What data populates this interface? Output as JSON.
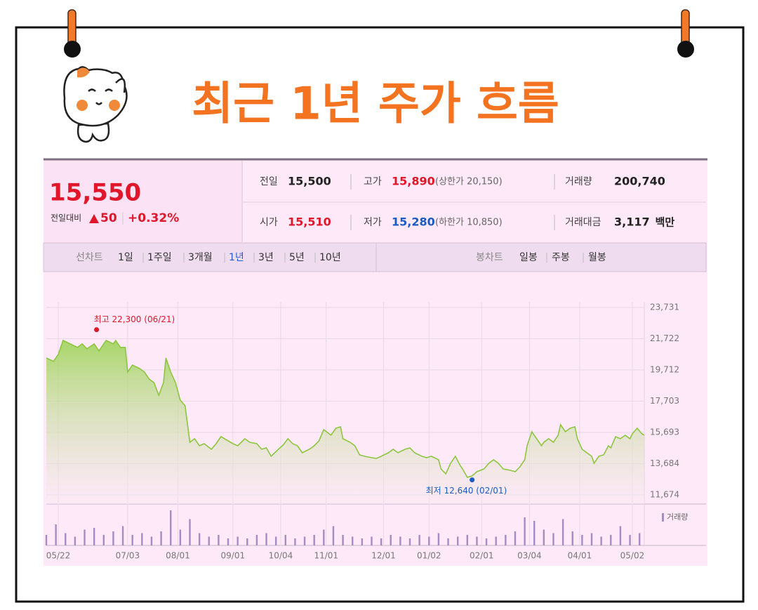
{
  "header": {
    "title": "최근 1년 주가 흐름"
  },
  "quote": {
    "price": "15,550",
    "change_label": "전일대비",
    "change": "50",
    "change_rate": "+0.32%",
    "rows": [
      [
        {
          "label": "전일",
          "value": "15,500",
          "color": "#222222"
        },
        {
          "label": "고가",
          "value": "15,890",
          "color": "#e0162b",
          "limit": "(상한가 20,150)"
        },
        {
          "label": "거래량",
          "value": "200,740",
          "color": "#222222"
        }
      ],
      [
        {
          "label": "시가",
          "value": "15,510",
          "color": "#e0162b"
        },
        {
          "label": "저가",
          "value": "15,280",
          "color": "#1a5bc4",
          "limit": "(하한가 10,850)"
        },
        {
          "label": "거래대금",
          "value": "3,117",
          "color": "#222222",
          "unit": "백만"
        }
      ]
    ]
  },
  "tabs": {
    "line_label": "선차트",
    "line_items": [
      "1일",
      "1주일",
      "3개월",
      "1년",
      "3년",
      "5년",
      "10년"
    ],
    "active": 3,
    "candle_label": "봉차트",
    "candle_items": [
      "일봉",
      "주봉",
      "월봉"
    ]
  },
  "chart_data": [
    {
      "type": "line",
      "x": [
        0,
        3,
        5,
        7,
        10,
        13,
        15,
        17,
        20,
        22,
        25,
        28,
        29,
        31,
        33,
        34,
        36,
        39,
        41,
        43,
        45,
        47,
        49,
        50,
        52,
        54,
        56,
        58,
        60,
        62,
        64,
        66,
        69,
        71,
        73,
        76,
        78,
        80,
        83,
        85,
        88,
        90,
        92,
        94,
        97,
        99,
        101,
        103,
        105,
        107,
        110,
        112,
        114,
        116,
        119,
        121,
        123,
        124,
        127,
        129,
        131,
        133,
        136,
        138,
        140,
        143,
        145,
        147,
        150,
        152,
        154,
        157,
        159,
        161,
        164,
        165,
        167,
        169,
        171,
        173,
        174,
        176,
        178,
        180,
        183,
        185,
        187,
        189,
        191,
        194,
        196,
        198,
        200,
        201,
        203,
        205,
        207,
        208,
        210,
        212,
        214,
        215,
        217,
        219,
        221,
        222,
        224,
        226,
        228,
        229,
        231,
        233,
        235,
        236,
        238,
        240,
        242,
        244,
        245,
        247,
        249,
        250
      ],
      "series": [
        {
          "color": "#8cc63f",
          "values": [
            20482,
            20256,
            20708,
            21611,
            21386,
            21160,
            21386,
            21069,
            21386,
            20934,
            21611,
            21386,
            21611,
            21160,
            21160,
            19579,
            20030,
            19805,
            19579,
            19127,
            18901,
            18088,
            18901,
            20482,
            19579,
            18901,
            17772,
            17411,
            15062,
            15288,
            14836,
            14971,
            14610,
            14971,
            15423,
            15152,
            14971,
            14836,
            15288,
            15062,
            14971,
            14610,
            14700,
            14158,
            14610,
            14881,
            15288,
            14971,
            14836,
            14384,
            14610,
            14836,
            15152,
            15875,
            15513,
            15965,
            16055,
            15288,
            15062,
            14836,
            14249,
            14158,
            14068,
            14023,
            14158,
            14384,
            14610,
            14384,
            14610,
            14700,
            14384,
            14158,
            14068,
            14158,
            13933,
            13345,
            13029,
            13707,
            14158,
            13571,
            13345,
            12803,
            12894,
            13165,
            13345,
            13707,
            13933,
            13707,
            13345,
            13255,
            13165,
            13481,
            13933,
            14836,
            15739,
            15288,
            14836,
            15062,
            15288,
            15062,
            15513,
            16191,
            15739,
            15965,
            16055,
            15288,
            14610,
            14384,
            14158,
            13707,
            14158,
            14249,
            14836,
            14700,
            15423,
            15288,
            15513,
            15288,
            15604,
            15965,
            15604,
            15513
          ]
        }
      ],
      "xlim": [
        0,
        250
      ],
      "xticks": [
        {
          "value": 5,
          "label": "05/22"
        },
        {
          "value": 34,
          "label": "07/03"
        },
        {
          "value": 55,
          "label": "08/01"
        },
        {
          "value": 78,
          "label": "09/01"
        },
        {
          "value": 98,
          "label": "10/04"
        },
        {
          "value": 117,
          "label": "11/01"
        },
        {
          "value": 141,
          "label": "12/01"
        },
        {
          "value": 160,
          "label": "01/02"
        },
        {
          "value": 182,
          "label": "02/01"
        },
        {
          "value": 202,
          "label": "03/04"
        },
        {
          "value": 223,
          "label": "04/01"
        },
        {
          "value": 245,
          "label": "05/02"
        }
      ],
      "ylim": [
        11087,
        24092
      ],
      "yticks": [
        {
          "value": 11674,
          "label": "11,674"
        },
        {
          "value": 13684,
          "label": "13,684"
        },
        {
          "value": 15693,
          "label": "15,693"
        },
        {
          "value": 17703,
          "label": "17,703"
        },
        {
          "value": 19712,
          "label": "19,712"
        },
        {
          "value": 21722,
          "label": "21,722"
        },
        {
          "value": 23731,
          "label": "23,731"
        }
      ],
      "grid": true,
      "annotations": [
        {
          "text": "최고 22,300 (06/21)",
          "x": 21,
          "y": 22300,
          "color": "#e0162b"
        },
        {
          "text": "최저 12,640 (02/01)",
          "x": 178,
          "y": 12640,
          "color": "#1a5bc4"
        }
      ]
    },
    {
      "type": "bar",
      "title": "거래량",
      "color": "#a48cc4",
      "x": [
        0,
        4,
        8,
        12,
        16,
        20,
        24,
        28,
        32,
        36,
        40,
        44,
        48,
        52,
        56,
        60,
        64,
        68,
        72,
        76,
        80,
        84,
        88,
        92,
        96,
        100,
        104,
        108,
        112,
        116,
        120,
        124,
        128,
        132,
        136,
        140,
        144,
        148,
        152,
        156,
        160,
        164,
        168,
        172,
        176,
        180,
        184,
        188,
        192,
        196,
        200,
        204,
        208,
        212,
        216,
        220,
        224,
        228,
        232,
        236,
        240,
        244,
        248
      ],
      "values": [
        30,
        60,
        35,
        25,
        45,
        50,
        30,
        40,
        55,
        30,
        35,
        25,
        40,
        100,
        45,
        75,
        35,
        25,
        30,
        20,
        25,
        20,
        30,
        35,
        25,
        30,
        20,
        25,
        30,
        45,
        55,
        30,
        25,
        20,
        25,
        20,
        30,
        25,
        20,
        30,
        25,
        35,
        20,
        25,
        30,
        25,
        20,
        25,
        30,
        40,
        80,
        70,
        45,
        35,
        75,
        40,
        30,
        35,
        25,
        30,
        55,
        30,
        35
      ],
      "xlim": [
        0,
        250
      ],
      "ylim": [
        0,
        100
      ]
    }
  ]
}
